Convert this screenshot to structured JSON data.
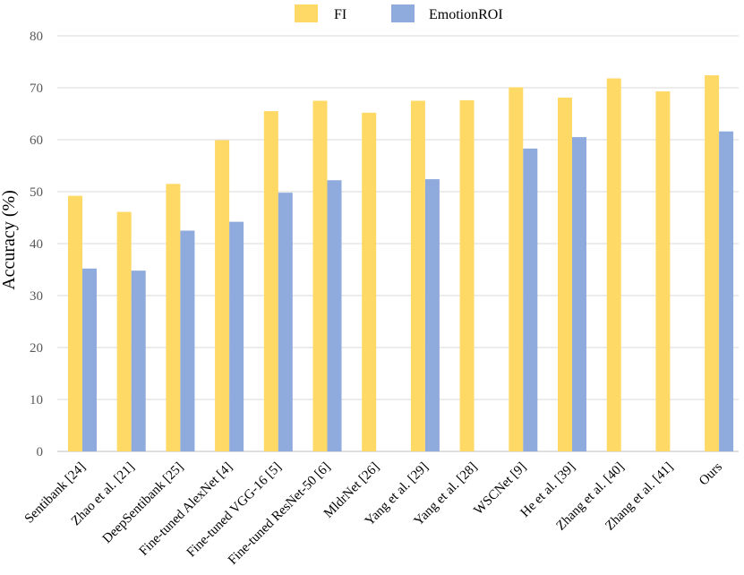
{
  "chart_data": {
    "type": "bar",
    "title": "",
    "xlabel": "",
    "ylabel": "Accuracy (%)",
    "ylim": [
      0,
      80
    ],
    "yticks": [
      "0",
      "10",
      "20",
      "30",
      "40",
      "50",
      "60",
      "70",
      "80"
    ],
    "grid": true,
    "legend_position": "top-center",
    "categories": [
      "Sentibank [24]",
      "Zhao et al. [21]",
      "DeepSentibank [25]",
      "Fine-tuned AlexNet [4]",
      "Fine-tuned VGG-16 [5]",
      "Fine-tuned ResNet-50 [6]",
      "MldrNet [26]",
      "Yang et al. [29]",
      "Yang et al. [28]",
      "WSCNet [9]",
      "He et al. [39]",
      "Zhang et al. [40]",
      "Zhang et al. [41]",
      "Ours"
    ],
    "series": [
      {
        "name": "FI",
        "color": "#ffd966",
        "values": [
          49.2,
          46.1,
          51.5,
          59.9,
          65.5,
          67.5,
          65.2,
          67.5,
          67.6,
          70.1,
          68.1,
          71.8,
          69.3,
          72.4
        ]
      },
      {
        "name": "EmotionROI",
        "color": "#8faadc",
        "values": [
          35.2,
          34.8,
          42.5,
          44.2,
          49.8,
          52.2,
          null,
          52.4,
          null,
          58.3,
          60.5,
          null,
          null,
          61.6
        ]
      }
    ]
  }
}
